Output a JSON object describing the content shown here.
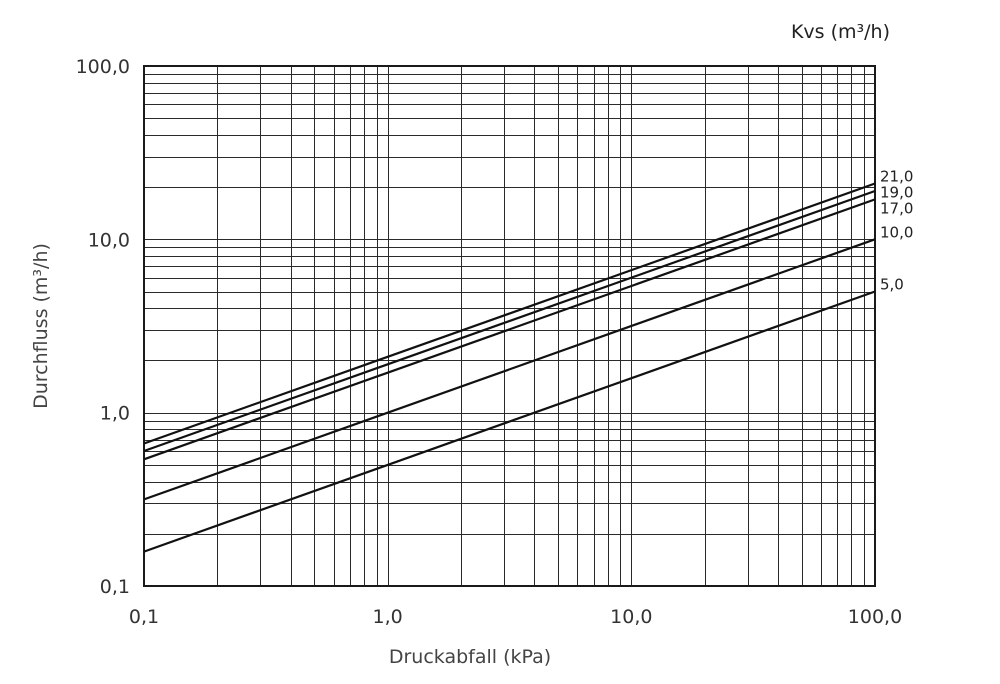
{
  "chart_data": {
    "type": "line",
    "xlabel": "Druckabfall (kPa)",
    "ylabel": "Durchfluss (m³/h)",
    "x_scale": "log",
    "y_scale": "log",
    "xlim": [
      0.1,
      100
    ],
    "ylim": [
      0.1,
      100
    ],
    "x_ticks": [
      "0,1",
      "1,0",
      "10,0",
      "100,0"
    ],
    "y_ticks": [
      "0,1",
      "1,0",
      "10,0",
      "100,0"
    ],
    "x_tick_values": [
      0.1,
      1,
      10,
      100
    ],
    "y_tick_values": [
      0.1,
      1,
      10,
      100
    ],
    "grid": true,
    "legend_title": "Kvs (m³/h)",
    "series": [
      {
        "name": "21,0",
        "kvs": 21,
        "x": [
          0.1,
          100
        ],
        "y": [
          0.664,
          21.0
        ]
      },
      {
        "name": "19,0",
        "kvs": 19,
        "x": [
          0.1,
          100
        ],
        "y": [
          0.601,
          19.0
        ]
      },
      {
        "name": "17,0",
        "kvs": 17,
        "x": [
          0.1,
          100
        ],
        "y": [
          0.538,
          17.0
        ]
      },
      {
        "name": "10,0",
        "kvs": 10,
        "x": [
          0.1,
          100
        ],
        "y": [
          0.316,
          10.0
        ]
      },
      {
        "name": "5,0",
        "kvs": 5,
        "x": [
          0.1,
          100
        ],
        "y": [
          0.158,
          5.0
        ]
      }
    ]
  }
}
